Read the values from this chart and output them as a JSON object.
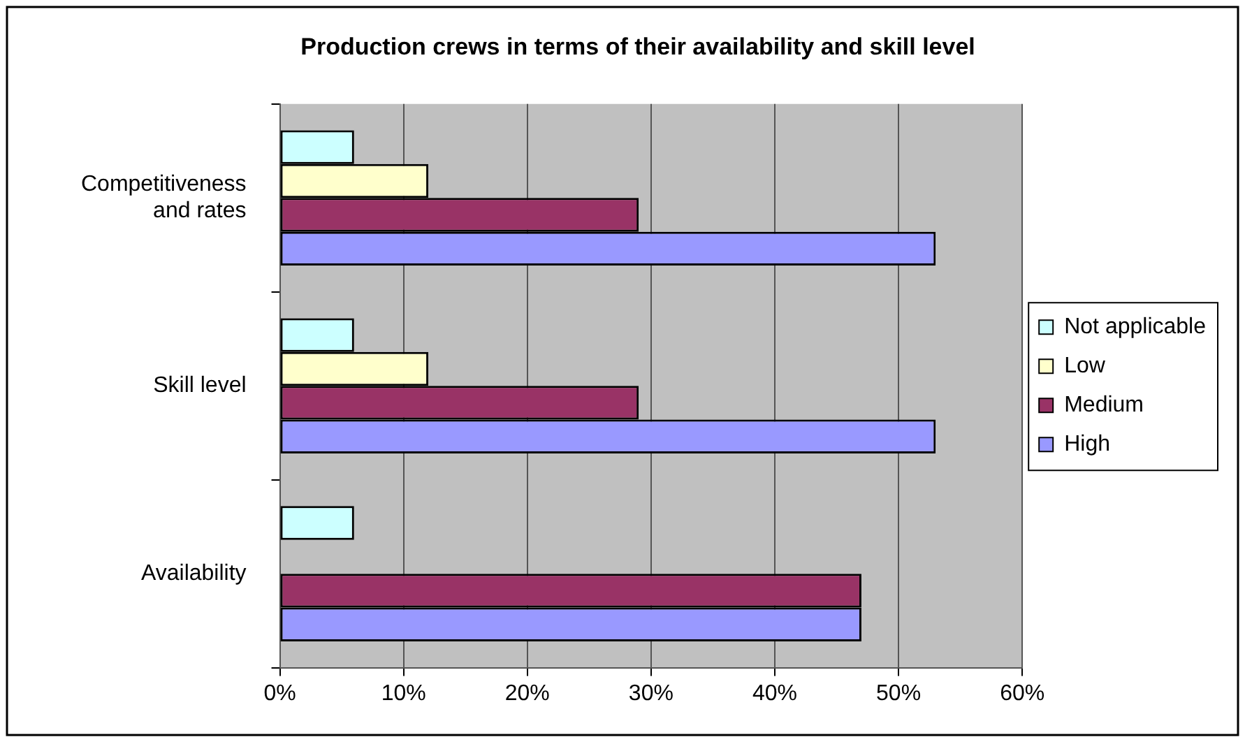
{
  "chart_data": {
    "type": "bar",
    "orientation": "horizontal",
    "title": "Production crews in terms of their availability and skill level",
    "categories": [
      "Competitiveness and rates",
      "Skill level",
      "Availability"
    ],
    "series": [
      {
        "name": "Not applicable",
        "color": "#ccffff",
        "values": [
          6,
          6,
          6
        ]
      },
      {
        "name": "Low",
        "color": "#ffffcc",
        "values": [
          12,
          12,
          0
        ]
      },
      {
        "name": "Medium",
        "color": "#993366",
        "values": [
          29,
          29,
          47
        ]
      },
      {
        "name": "High",
        "color": "#9999ff",
        "values": [
          53,
          53,
          47
        ]
      }
    ],
    "xlim": [
      0,
      60
    ],
    "xticks": [
      {
        "value": 0,
        "label": "0%"
      },
      {
        "value": 10,
        "label": "10%"
      },
      {
        "value": 20,
        "label": "20%"
      },
      {
        "value": 30,
        "label": "30%"
      },
      {
        "value": 40,
        "label": "40%"
      },
      {
        "value": 50,
        "label": "50%"
      },
      {
        "value": 60,
        "label": "60%"
      }
    ],
    "grid": "x",
    "legend": "right"
  }
}
